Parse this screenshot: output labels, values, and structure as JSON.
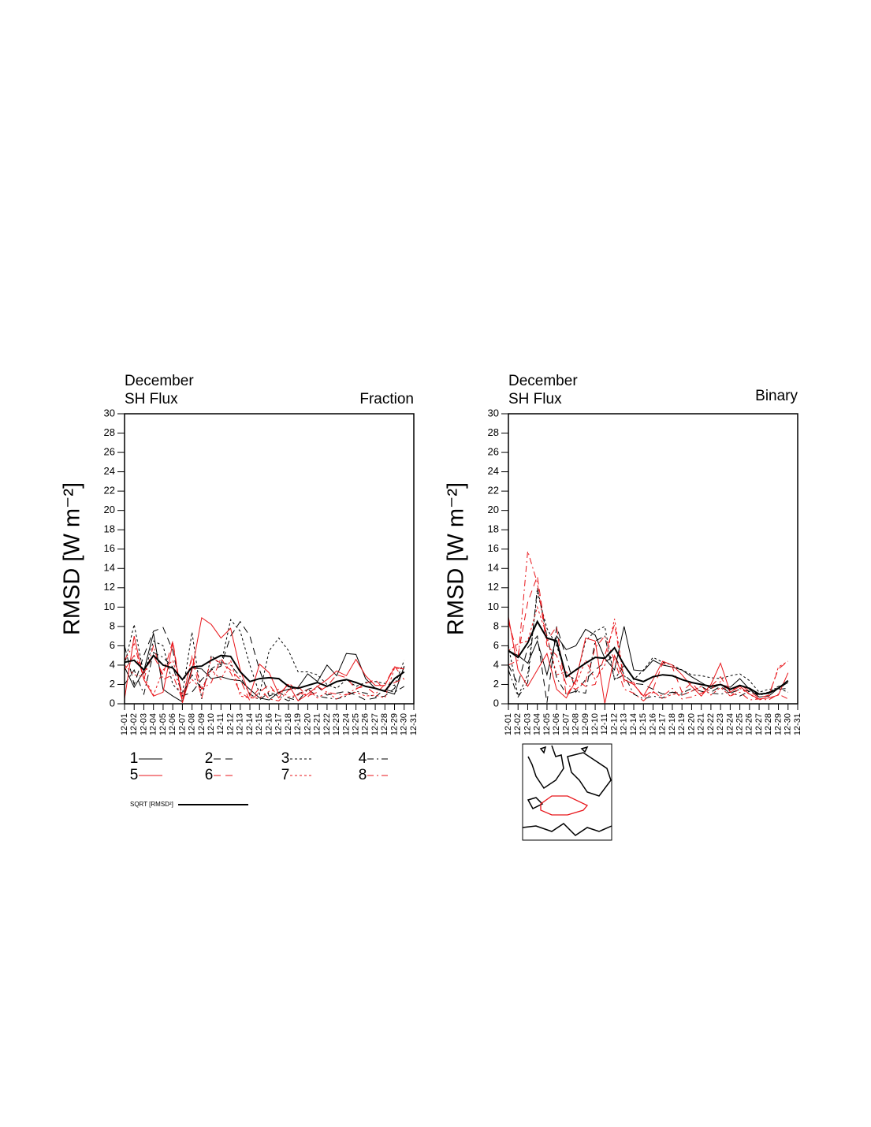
{
  "chart_data": [
    {
      "type": "line",
      "title": "December",
      "subtitle": "SH Flux",
      "right_title": "Fraction",
      "ylabel": "RMSD [W m⁻²]",
      "categories": [
        "12-01",
        "12-02",
        "12-03",
        "12-04",
        "12-05",
        "12-06",
        "12-07",
        "12-08",
        "12-09",
        "12-10",
        "12-11",
        "12-12",
        "12-13",
        "12-14",
        "12-15",
        "12-16",
        "12-17",
        "12-18",
        "12-19",
        "12-20",
        "12-21",
        "12-22",
        "12-23",
        "12-24",
        "12-25",
        "12-26",
        "12-27",
        "12-28",
        "12-29",
        "12-30",
        "12-31"
      ],
      "ylim": [
        0,
        30
      ],
      "yticks": [
        0,
        2,
        4,
        6,
        8,
        10,
        12,
        14,
        16,
        18,
        20,
        22,
        24,
        26,
        28,
        30
      ],
      "series": [
        {
          "name": "1",
          "color": "#000000",
          "dash": "none",
          "width": 1,
          "values": [
            3.8,
            1.7,
            3.4,
            7.3,
            1.5,
            0.8,
            0.2,
            3.7,
            3.6,
            2.6,
            2.8,
            2.5,
            2.4,
            1.5,
            0.6,
            0.4,
            1.2,
            1.5,
            1.7,
            3.1,
            2.3,
            4,
            2.9,
            5.2,
            5.1,
            2.6,
            1.6,
            1.3,
            1,
            3.9,
            null
          ]
        },
        {
          "name": "2",
          "color": "#000000",
          "dash": "9,6",
          "width": 1,
          "values": [
            6,
            2,
            5,
            7.5,
            7.9,
            5.5,
            0.8,
            1.2,
            2.5,
            3.5,
            3.9,
            7,
            8.5,
            7,
            3.5,
            0.8,
            1.2,
            0.6,
            0.3,
            1.5,
            1.8,
            0.9,
            1.1,
            1.3,
            0.9,
            0.4,
            0.6,
            0.8,
            1.6,
            3.8,
            null
          ]
        },
        {
          "name": "3",
          "color": "#000000",
          "dash": "3,3",
          "width": 1,
          "values": [
            4,
            8.2,
            3,
            6.5,
            6,
            2,
            1,
            7.4,
            0.5,
            5,
            4,
            8.7,
            7.5,
            4,
            1,
            5.5,
            6.8,
            5.5,
            3.3,
            3.3,
            3,
            2,
            1.6,
            2.5,
            1.8,
            2.2,
            2.3,
            2.1,
            1.9,
            4.5,
            null
          ]
        },
        {
          "name": "4",
          "color": "#000000",
          "dash": "8,4,2,4",
          "width": 1,
          "values": [
            2,
            3.5,
            1,
            5.3,
            4.8,
            3.8,
            1,
            3,
            1.5,
            3.6,
            4.3,
            4,
            2.8,
            1,
            0.4,
            1.2,
            0.8,
            0.3,
            1,
            1.5,
            0.8,
            0.6,
            0.5,
            0.8,
            1.3,
            1.1,
            0.7,
            1.5,
            1.2,
            1.8,
            null
          ]
        },
        {
          "name": "5",
          "color": "#e8161b",
          "dash": "none",
          "width": 1,
          "values": [
            0.5,
            7,
            2.5,
            0.8,
            1.2,
            6.3,
            0.1,
            3.5,
            8.9,
            8.2,
            6.8,
            7.8,
            3.5,
            0.8,
            4.1,
            3.2,
            1,
            2,
            0.3,
            1,
            1.8,
            2.5,
            3.4,
            2.9,
            4.6,
            2.9,
            1.9,
            1.9,
            3.8,
            3.6,
            null
          ]
        },
        {
          "name": "6",
          "color": "#e8161b",
          "dash": "9,6",
          "width": 1,
          "values": [
            3.5,
            5,
            3.2,
            5,
            3,
            6.5,
            0.3,
            4.8,
            0.6,
            4.8,
            4.2,
            3.5,
            2.5,
            0.3,
            1.2,
            2,
            0.6,
            2.2,
            1.2,
            0.8,
            1.2,
            1.8,
            3,
            2.7,
            1.5,
            2.1,
            2.5,
            1.4,
            2.2,
            2.6,
            null
          ]
        },
        {
          "name": "7",
          "color": "#e8161b",
          "dash": "3,3",
          "width": 1,
          "values": [
            4,
            3,
            2.8,
            0.9,
            3.5,
            4.5,
            1,
            2.5,
            1.5,
            3.5,
            2.5,
            4.5,
            0.8,
            0.6,
            0.6,
            1.3,
            1.5,
            0.7,
            0.9,
            1.5,
            0.6,
            1.2,
            0.5,
            1,
            1.2,
            0.8,
            0.9,
            0.6,
            3.7,
            3.6,
            null
          ]
        },
        {
          "name": "8",
          "color": "#e8161b",
          "dash": "8,4,2,4",
          "width": 1,
          "values": [
            4.5,
            6.2,
            2.5,
            6,
            2.5,
            3,
            0.4,
            5,
            1.5,
            2.2,
            4.7,
            3.2,
            1.2,
            0.5,
            1.6,
            0.5,
            0.3,
            1.4,
            1.8,
            0.7,
            1.8,
            1.2,
            1,
            0.9,
            1.6,
            1.8,
            1,
            2,
            3.9,
            2.5,
            null
          ]
        },
        {
          "name": "SQRT [RMSD²]",
          "color": "#000000",
          "dash": "none",
          "width": 2,
          "values": [
            4.3,
            4.5,
            3.5,
            5,
            4,
            3.7,
            2.5,
            3.8,
            3.9,
            4.5,
            5,
            4.9,
            3.3,
            2.3,
            2.6,
            2.7,
            2.6,
            1.8,
            1.6,
            1.9,
            2.2,
            1.8,
            2.3,
            2.5,
            2.2,
            1.8,
            1.6,
            1.3,
            2.6,
            3.3,
            null
          ]
        }
      ]
    },
    {
      "type": "line",
      "title": "December",
      "subtitle": "SH Flux",
      "right_title": "Binary",
      "ylabel": "RMSD [W m⁻²]",
      "categories": [
        "12-01",
        "12-02",
        "12-03",
        "12-04",
        "12-05",
        "12-06",
        "12-07",
        "12-08",
        "12-09",
        "12-10",
        "12-11",
        "12-12",
        "12-13",
        "12-14",
        "12-15",
        "12-16",
        "12-17",
        "12-18",
        "12-19",
        "12-20",
        "12-21",
        "12-22",
        "12-23",
        "12-24",
        "12-25",
        "12-26",
        "12-27",
        "12-28",
        "12-29",
        "12-30",
        "12-31"
      ],
      "ylim": [
        0,
        30
      ],
      "yticks": [
        0,
        2,
        4,
        6,
        8,
        10,
        12,
        14,
        16,
        18,
        20,
        22,
        24,
        26,
        28,
        30
      ],
      "series": [
        {
          "color": "#000000",
          "dash": "none",
          "width": 1,
          "values": [
            5.5,
            5,
            4.2,
            6.5,
            3,
            7,
            5.6,
            6,
            7.7,
            7.1,
            4.7,
            3.5,
            8,
            3.5,
            3.4,
            4.5,
            4,
            3.8,
            3.5,
            2.8,
            2.2,
            1.6,
            2,
            1.7,
            2.6,
            1.5,
            0.7,
            0.8,
            1.6,
            2.2,
            null
          ]
        },
        {
          "color": "#000000",
          "dash": "9,6",
          "width": 1,
          "values": [
            4,
            2,
            5.8,
            7,
            0.1,
            8,
            4.8,
            1.2,
            2.5,
            3.5,
            4.3,
            5,
            3,
            2.1,
            2,
            1.5,
            1,
            1.2,
            0.9,
            1.3,
            1.8,
            1.2,
            1.8,
            1.1,
            1.5,
            1.3,
            1,
            1.2,
            1.8,
            1.9,
            null
          ]
        },
        {
          "color": "#000000",
          "dash": "3,3",
          "width": 1,
          "values": [
            6,
            0.8,
            3,
            11.5,
            7.8,
            6,
            3,
            2.5,
            6.5,
            7.5,
            8,
            2.5,
            4,
            2.5,
            3.5,
            4.8,
            4.3,
            4,
            3.5,
            3,
            2.9,
            2.7,
            2.6,
            2.9,
            3.1,
            2.4,
            1.2,
            1.5,
            1.6,
            1.2,
            null
          ]
        },
        {
          "color": "#000000",
          "dash": "8,4,2,4",
          "width": 1,
          "values": [
            3.5,
            0.7,
            2.2,
            12,
            7,
            2.7,
            1,
            1.3,
            1.1,
            6.5,
            7,
            2.5,
            3,
            1,
            0.5,
            0.8,
            0.6,
            1.2,
            1.1,
            1.6,
            1.3,
            1.1,
            1,
            1.2,
            0.8,
            1.3,
            0.9,
            1.1,
            1.5,
            1.6,
            null
          ]
        },
        {
          "color": "#e8161b",
          "dash": "none",
          "width": 1,
          "values": [
            9,
            3.5,
            1.8,
            3.5,
            5.2,
            1.5,
            0.6,
            2.4,
            6.8,
            6.5,
            0,
            5,
            2.5,
            2,
            0.8,
            2.5,
            4.4,
            4,
            3,
            1.8,
            0.8,
            2,
            4.2,
            1.2,
            1.8,
            1,
            0.5,
            0.6,
            0.9,
            3.2,
            null
          ]
        },
        {
          "color": "#e8161b",
          "dash": "9,6",
          "width": 1,
          "values": [
            8.5,
            5,
            10.5,
            13.2,
            6.5,
            8,
            0.8,
            2.5,
            1.8,
            2,
            5,
            8.2,
            2.3,
            2.2,
            0.6,
            1.5,
            4.2,
            3.8,
            1.2,
            2.2,
            1,
            1.8,
            2.8,
            1.2,
            2,
            1.3,
            0.6,
            0.9,
            3.6,
            4.4,
            null
          ]
        },
        {
          "color": "#e8161b",
          "dash": "3,3",
          "width": 1,
          "values": [
            5.5,
            6.2,
            6.5,
            10,
            7,
            3,
            3.3,
            2,
            4.5,
            2.5,
            4,
            8.8,
            2.5,
            2,
            0.8,
            1.3,
            0.5,
            1,
            0.9,
            1.3,
            1.8,
            0.9,
            1.7,
            0.8,
            1.6,
            1,
            0.4,
            0.7,
            3.8,
            4.4,
            null
          ]
        },
        {
          "color": "#e8161b",
          "dash": "8,4,2,4",
          "width": 1,
          "values": [
            4,
            4.5,
            15.8,
            12.5,
            6,
            5,
            2,
            1.5,
            2.3,
            5.8,
            7,
            4.5,
            1.5,
            1.1,
            0.3,
            1.2,
            0.8,
            1.6,
            0.5,
            0.7,
            1.1,
            1.5,
            2.3,
            0.8,
            1.2,
            0.4,
            0.5,
            0.4,
            1,
            0.5,
            null
          ]
        },
        {
          "color": "#000000",
          "dash": "none",
          "width": 2,
          "values": [
            5.5,
            4.8,
            6.3,
            8.5,
            6.8,
            6.5,
            2.8,
            3.5,
            4.2,
            4.8,
            4.7,
            5.8,
            4,
            2.6,
            2.3,
            2.8,
            3,
            2.9,
            2.5,
            2.2,
            2,
            1.8,
            2,
            1.5,
            1.9,
            1.6,
            1,
            1.1,
            1.6,
            2.4,
            null
          ]
        }
      ]
    }
  ]
}
